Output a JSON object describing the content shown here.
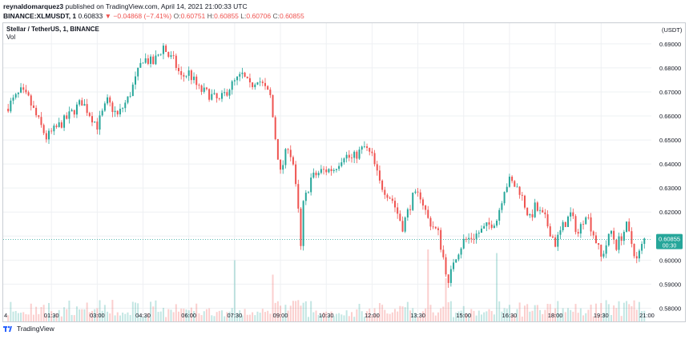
{
  "header": {
    "author": "reynaldomarquez3",
    "published_text": "published on TradingView.com, April 14, 2021 21:00:33 UTC"
  },
  "ticker": {
    "symbol": "BINANCE:XLMUSDT, 1",
    "last": "0.60833",
    "change": "▼ −0.04868 (−7.41%)",
    "o_label": "O:",
    "o": "0.60751",
    "h_label": "H:",
    "h": "0.60855",
    "l_label": "L:",
    "l": "0.60706",
    "c_label": "C:",
    "c": "0.60855"
  },
  "legend": {
    "title": "Stellar / TetherUS, 1, BINANCE",
    "vol": "Vol"
  },
  "price_axis": {
    "currency": "USDT",
    "last_price": "0.60855",
    "countdown": "00:30"
  },
  "footer": {
    "brand": "TradingView"
  },
  "colors": {
    "up": "#26a69a",
    "down": "#ef5350",
    "grid": "#eef0f3"
  },
  "chart_data": {
    "type": "candlestick",
    "xlabel": "",
    "ylabel": "",
    "ylim": [
      0.5745,
      0.6986
    ],
    "y_ticks": [
      0.58,
      0.59,
      0.6,
      0.61,
      0.62,
      0.63,
      0.64,
      0.65,
      0.66,
      0.67,
      0.68,
      0.69
    ],
    "y_tick_labels": [
      "0.58000",
      "0.59000",
      "0.60000",
      "0.61000",
      "0.62000",
      "0.63000",
      "0.64000",
      "0.65000",
      "0.66000",
      "0.67000",
      "0.68000",
      "0.69000"
    ],
    "x_ticks": [
      "4",
      "01:30",
      "03:00",
      "04:30",
      "06:00",
      "07:30",
      "09:00",
      "10:30",
      "12:00",
      "13:30",
      "15:00",
      "16:30",
      "18:00",
      "19:30",
      "21:00"
    ],
    "close_path": {
      "times": [
        "00:00",
        "00:30",
        "00:45",
        "01:00",
        "01:20",
        "01:40",
        "02:00",
        "02:30",
        "03:00",
        "03:20",
        "03:40",
        "04:00",
        "04:15",
        "04:30",
        "04:50",
        "05:10",
        "05:20",
        "05:30",
        "05:45",
        "06:00",
        "06:20",
        "06:40",
        "07:00",
        "07:20",
        "07:45",
        "08:00",
        "08:15",
        "08:40",
        "08:50",
        "09:00",
        "09:15",
        "09:25",
        "09:35",
        "09:40",
        "09:45",
        "10:00",
        "10:20",
        "10:45",
        "11:05",
        "11:20",
        "11:45",
        "12:00",
        "12:15",
        "12:40",
        "13:00",
        "13:20",
        "13:35",
        "13:50",
        "14:10",
        "14:25",
        "14:30",
        "14:40",
        "15:00",
        "15:20",
        "15:40",
        "16:05",
        "16:20",
        "16:30",
        "16:50",
        "17:10",
        "17:20",
        "17:40",
        "18:00",
        "18:15",
        "18:30",
        "18:45",
        "19:00",
        "19:20",
        "19:30",
        "19:50",
        "20:00",
        "20:20",
        "20:40",
        "20:55"
      ],
      "values": [
        0.663,
        0.67,
        0.667,
        0.66,
        0.651,
        0.655,
        0.659,
        0.666,
        0.656,
        0.666,
        0.66,
        0.667,
        0.675,
        0.684,
        0.682,
        0.689,
        0.685,
        0.683,
        0.676,
        0.678,
        0.671,
        0.669,
        0.666,
        0.672,
        0.677,
        0.672,
        0.676,
        0.668,
        0.651,
        0.636,
        0.648,
        0.64,
        0.62,
        0.605,
        0.623,
        0.634,
        0.637,
        0.638,
        0.644,
        0.642,
        0.647,
        0.643,
        0.632,
        0.625,
        0.614,
        0.626,
        0.627,
        0.617,
        0.611,
        0.596,
        0.589,
        0.6,
        0.608,
        0.61,
        0.613,
        0.617,
        0.63,
        0.633,
        0.629,
        0.617,
        0.622,
        0.617,
        0.607,
        0.614,
        0.619,
        0.611,
        0.62,
        0.608,
        0.601,
        0.612,
        0.606,
        0.614,
        0.6,
        0.6086
      ]
    },
    "volume_spikes": [
      {
        "time": "07:30",
        "rel": 0.85
      },
      {
        "time": "08:45",
        "rel": 0.65
      },
      {
        "time": "13:50",
        "rel": 1.0
      },
      {
        "time": "14:25",
        "rel": 0.6
      },
      {
        "time": "16:05",
        "rel": 0.95
      }
    ],
    "last_price": 0.60855
  }
}
